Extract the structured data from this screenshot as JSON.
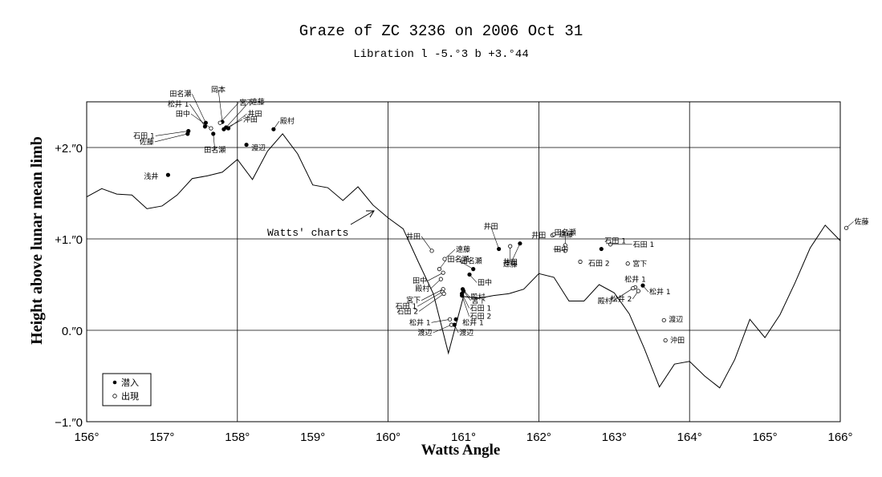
{
  "chart_data": {
    "type": "scatter",
    "title": "Graze of ZC 3236 on 2006 Oct 31",
    "subtitle": "Libration  l -5.°3   b +3.°44",
    "xlabel": "Watts Angle",
    "ylabel": "Height above lunar mean limb",
    "xlim": [
      156,
      166
    ],
    "ylim": [
      -1,
      2.5
    ],
    "x_ticks": [
      156,
      157,
      158,
      159,
      160,
      161,
      162,
      163,
      164,
      165,
      166
    ],
    "x_tick_labels": [
      "156°",
      "157°",
      "158°",
      "159°",
      "160°",
      "161°",
      "162°",
      "163°",
      "164°",
      "165°",
      "166°"
    ],
    "y_ticks": [
      -1,
      0,
      1,
      2
    ],
    "y_tick_labels": [
      "−1.″0",
      "0.″0",
      "+1.″0",
      "+2.″0"
    ],
    "grid": true,
    "annotation": "Watts' charts",
    "legend_position": "bottom-left",
    "legend": [
      {
        "marker": "filled",
        "label": "潜入"
      },
      {
        "marker": "open",
        "label": "出現"
      }
    ],
    "profile": {
      "name": "Watts' charts",
      "x": [
        156.0,
        156.2,
        156.4,
        156.6,
        156.8,
        157.0,
        157.2,
        157.4,
        157.6,
        157.8,
        158.0,
        158.2,
        158.4,
        158.6,
        158.8,
        159.0,
        159.2,
        159.4,
        159.6,
        159.8,
        160.0,
        160.2,
        160.4,
        160.6,
        160.8,
        161.0,
        161.2,
        161.4,
        161.6,
        161.8,
        162.0,
        162.2,
        162.4,
        162.6,
        162.8,
        163.0,
        163.2,
        163.4,
        163.6,
        163.8,
        164.0,
        164.2,
        164.4,
        164.6,
        164.8,
        165.0,
        165.2,
        165.4,
        165.6,
        165.8,
        166.0
      ],
      "y": [
        1.46,
        1.55,
        1.49,
        1.48,
        1.33,
        1.36,
        1.48,
        1.66,
        1.69,
        1.73,
        1.87,
        1.65,
        1.96,
        2.15,
        1.93,
        1.59,
        1.56,
        1.42,
        1.57,
        1.37,
        1.23,
        1.11,
        0.75,
        0.4,
        -0.25,
        0.37,
        0.35,
        0.38,
        0.4,
        0.45,
        0.62,
        0.58,
        0.32,
        0.32,
        0.5,
        0.41,
        0.18,
        -0.2,
        -0.62,
        -0.37,
        -0.34,
        -0.5,
        -0.63,
        -0.32,
        0.12,
        -0.08,
        0.17,
        0.52,
        0.9,
        1.15,
        0.98
      ]
    },
    "observations": [
      {
        "x": 157.58,
        "y": 2.27,
        "filled": true,
        "label": "田名瀬"
      },
      {
        "x": 157.8,
        "y": 2.28,
        "filled": true,
        "label": "岡本"
      },
      {
        "x": 157.57,
        "y": 2.23,
        "filled": true,
        "label": "松井 1"
      },
      {
        "x": 157.65,
        "y": 2.21,
        "filled": false,
        "label": "田中"
      },
      {
        "x": 157.85,
        "y": 2.22,
        "filled": true,
        "label": "遠藤"
      },
      {
        "x": 157.77,
        "y": 2.27,
        "filled": false,
        "label": "宮下"
      },
      {
        "x": 157.88,
        "y": 2.21,
        "filled": true,
        "label": "井田"
      },
      {
        "x": 157.82,
        "y": 2.2,
        "filled": true,
        "label": "沖田"
      },
      {
        "x": 157.35,
        "y": 2.18,
        "filled": true,
        "label": "石田 1"
      },
      {
        "x": 157.34,
        "y": 2.15,
        "filled": true,
        "label": "佐藤"
      },
      {
        "x": 157.68,
        "y": 2.15,
        "filled": true,
        "label": "田名瀬"
      },
      {
        "x": 158.48,
        "y": 2.2,
        "filled": true,
        "label": "殿村"
      },
      {
        "x": 158.12,
        "y": 2.03,
        "filled": true,
        "label": "渡辺"
      },
      {
        "x": 157.08,
        "y": 1.7,
        "filled": true,
        "label": "浅井"
      },
      {
        "x": 160.58,
        "y": 0.87,
        "filled": false,
        "label": "井田"
      },
      {
        "x": 160.75,
        "y": 0.78,
        "filled": false,
        "label": "遠藤"
      },
      {
        "x": 160.68,
        "y": 0.67,
        "filled": false,
        "label": "田名瀬"
      },
      {
        "x": 160.73,
        "y": 0.63,
        "filled": false,
        "label": "田中"
      },
      {
        "x": 160.7,
        "y": 0.56,
        "filled": false,
        "label": "殿村"
      },
      {
        "x": 160.73,
        "y": 0.45,
        "filled": false,
        "label": "宮下"
      },
      {
        "x": 160.72,
        "y": 0.42,
        "filled": false,
        "label": "石田 1"
      },
      {
        "x": 160.74,
        "y": 0.4,
        "filled": false,
        "label": "石田 2"
      },
      {
        "x": 161.13,
        "y": 0.67,
        "filled": true,
        "label": "田名瀬"
      },
      {
        "x": 161.08,
        "y": 0.61,
        "filled": true,
        "label": "田中"
      },
      {
        "x": 160.99,
        "y": 0.45,
        "filled": true,
        "label": "殿村"
      },
      {
        "x": 161.0,
        "y": 0.43,
        "filled": true,
        "label": "宮下"
      },
      {
        "x": 160.98,
        "y": 0.4,
        "filled": true,
        "label": "石田 1"
      },
      {
        "x": 160.98,
        "y": 0.38,
        "filled": true,
        "label": "石田 2"
      },
      {
        "x": 160.82,
        "y": 0.12,
        "filled": false,
        "label": "松井 1"
      },
      {
        "x": 160.84,
        "y": 0.06,
        "filled": false,
        "label": "渡辺"
      },
      {
        "x": 160.9,
        "y": 0.12,
        "filled": true,
        "label": "松井 1"
      },
      {
        "x": 160.88,
        "y": 0.06,
        "filled": true,
        "label": "渡辺"
      },
      {
        "x": 161.47,
        "y": 0.89,
        "filled": true,
        "label": "井田"
      },
      {
        "x": 161.62,
        "y": 0.92,
        "filled": false,
        "label": "井田"
      },
      {
        "x": 161.75,
        "y": 0.95,
        "filled": true,
        "label": "遠藤"
      },
      {
        "x": 162.18,
        "y": 1.04,
        "filled": false,
        "label": "井田"
      },
      {
        "x": 162.2,
        "y": 1.05,
        "filled": false,
        "label": "遠藤"
      },
      {
        "x": 162.35,
        "y": 0.93,
        "filled": false,
        "label": "田名瀬"
      },
      {
        "x": 162.35,
        "y": 0.87,
        "filled": false,
        "label": "田中"
      },
      {
        "x": 162.55,
        "y": 0.75,
        "filled": false,
        "label": "石田 2"
      },
      {
        "x": 162.83,
        "y": 0.89,
        "filled": true,
        "label": "石田 1"
      },
      {
        "x": 162.95,
        "y": 0.94,
        "filled": false,
        "label": "石田 1"
      },
      {
        "x": 163.18,
        "y": 0.73,
        "filled": false,
        "label": "宮下"
      },
      {
        "x": 163.28,
        "y": 0.47,
        "filled": false,
        "label": "松井 1"
      },
      {
        "x": 163.38,
        "y": 0.49,
        "filled": true,
        "label": "松井 1"
      },
      {
        "x": 163.32,
        "y": 0.43,
        "filled": false,
        "label": "松井 2"
      },
      {
        "x": 163.25,
        "y": 0.46,
        "filled": false,
        "label": "殿村"
      },
      {
        "x": 163.66,
        "y": 0.11,
        "filled": false,
        "label": "渡辺"
      },
      {
        "x": 163.68,
        "y": -0.11,
        "filled": false,
        "label": "沖田"
      },
      {
        "x": 166.08,
        "y": 1.12,
        "filled": false,
        "label": "佐藤"
      }
    ]
  }
}
